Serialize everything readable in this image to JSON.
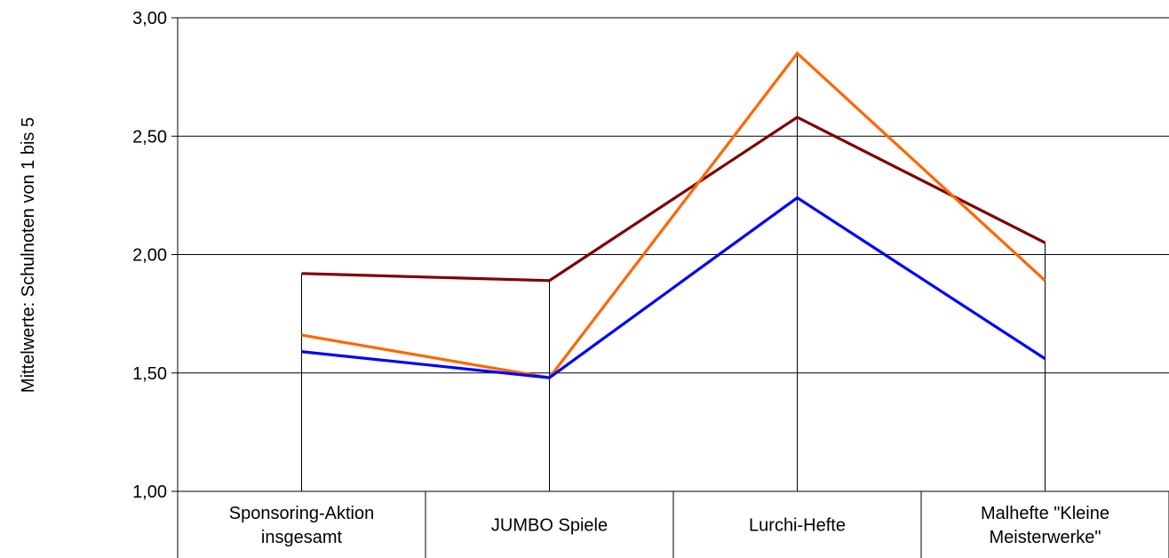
{
  "chart_data": {
    "type": "line",
    "categories": [
      [
        "Sponsoring-Aktion",
        "insgesamt"
      ],
      [
        "JUMBO Spiele"
      ],
      [
        "Lurchi-Hefte"
      ],
      [
        "Malhefte \"Kleine",
        "Meisterwerke\""
      ]
    ],
    "ylabel": "Mittelwerte: Schulnoten von 1 bis 5",
    "ylim": [
      1.0,
      3.0
    ],
    "yticks": [
      "1,00",
      "1,50",
      "2,00",
      "2,50",
      "3,00"
    ],
    "ytick_values": [
      1.0,
      1.5,
      2.0,
      2.5,
      3.0
    ],
    "grid": true,
    "series": [
      {
        "color": "#800000",
        "values": [
          1.92,
          1.89,
          2.58,
          2.05
        ]
      },
      {
        "color": "#FF6600",
        "values": [
          1.66,
          1.48,
          2.85,
          1.89
        ]
      },
      {
        "color": "#0000FF",
        "values": [
          1.59,
          1.48,
          2.24,
          1.56
        ]
      }
    ]
  }
}
